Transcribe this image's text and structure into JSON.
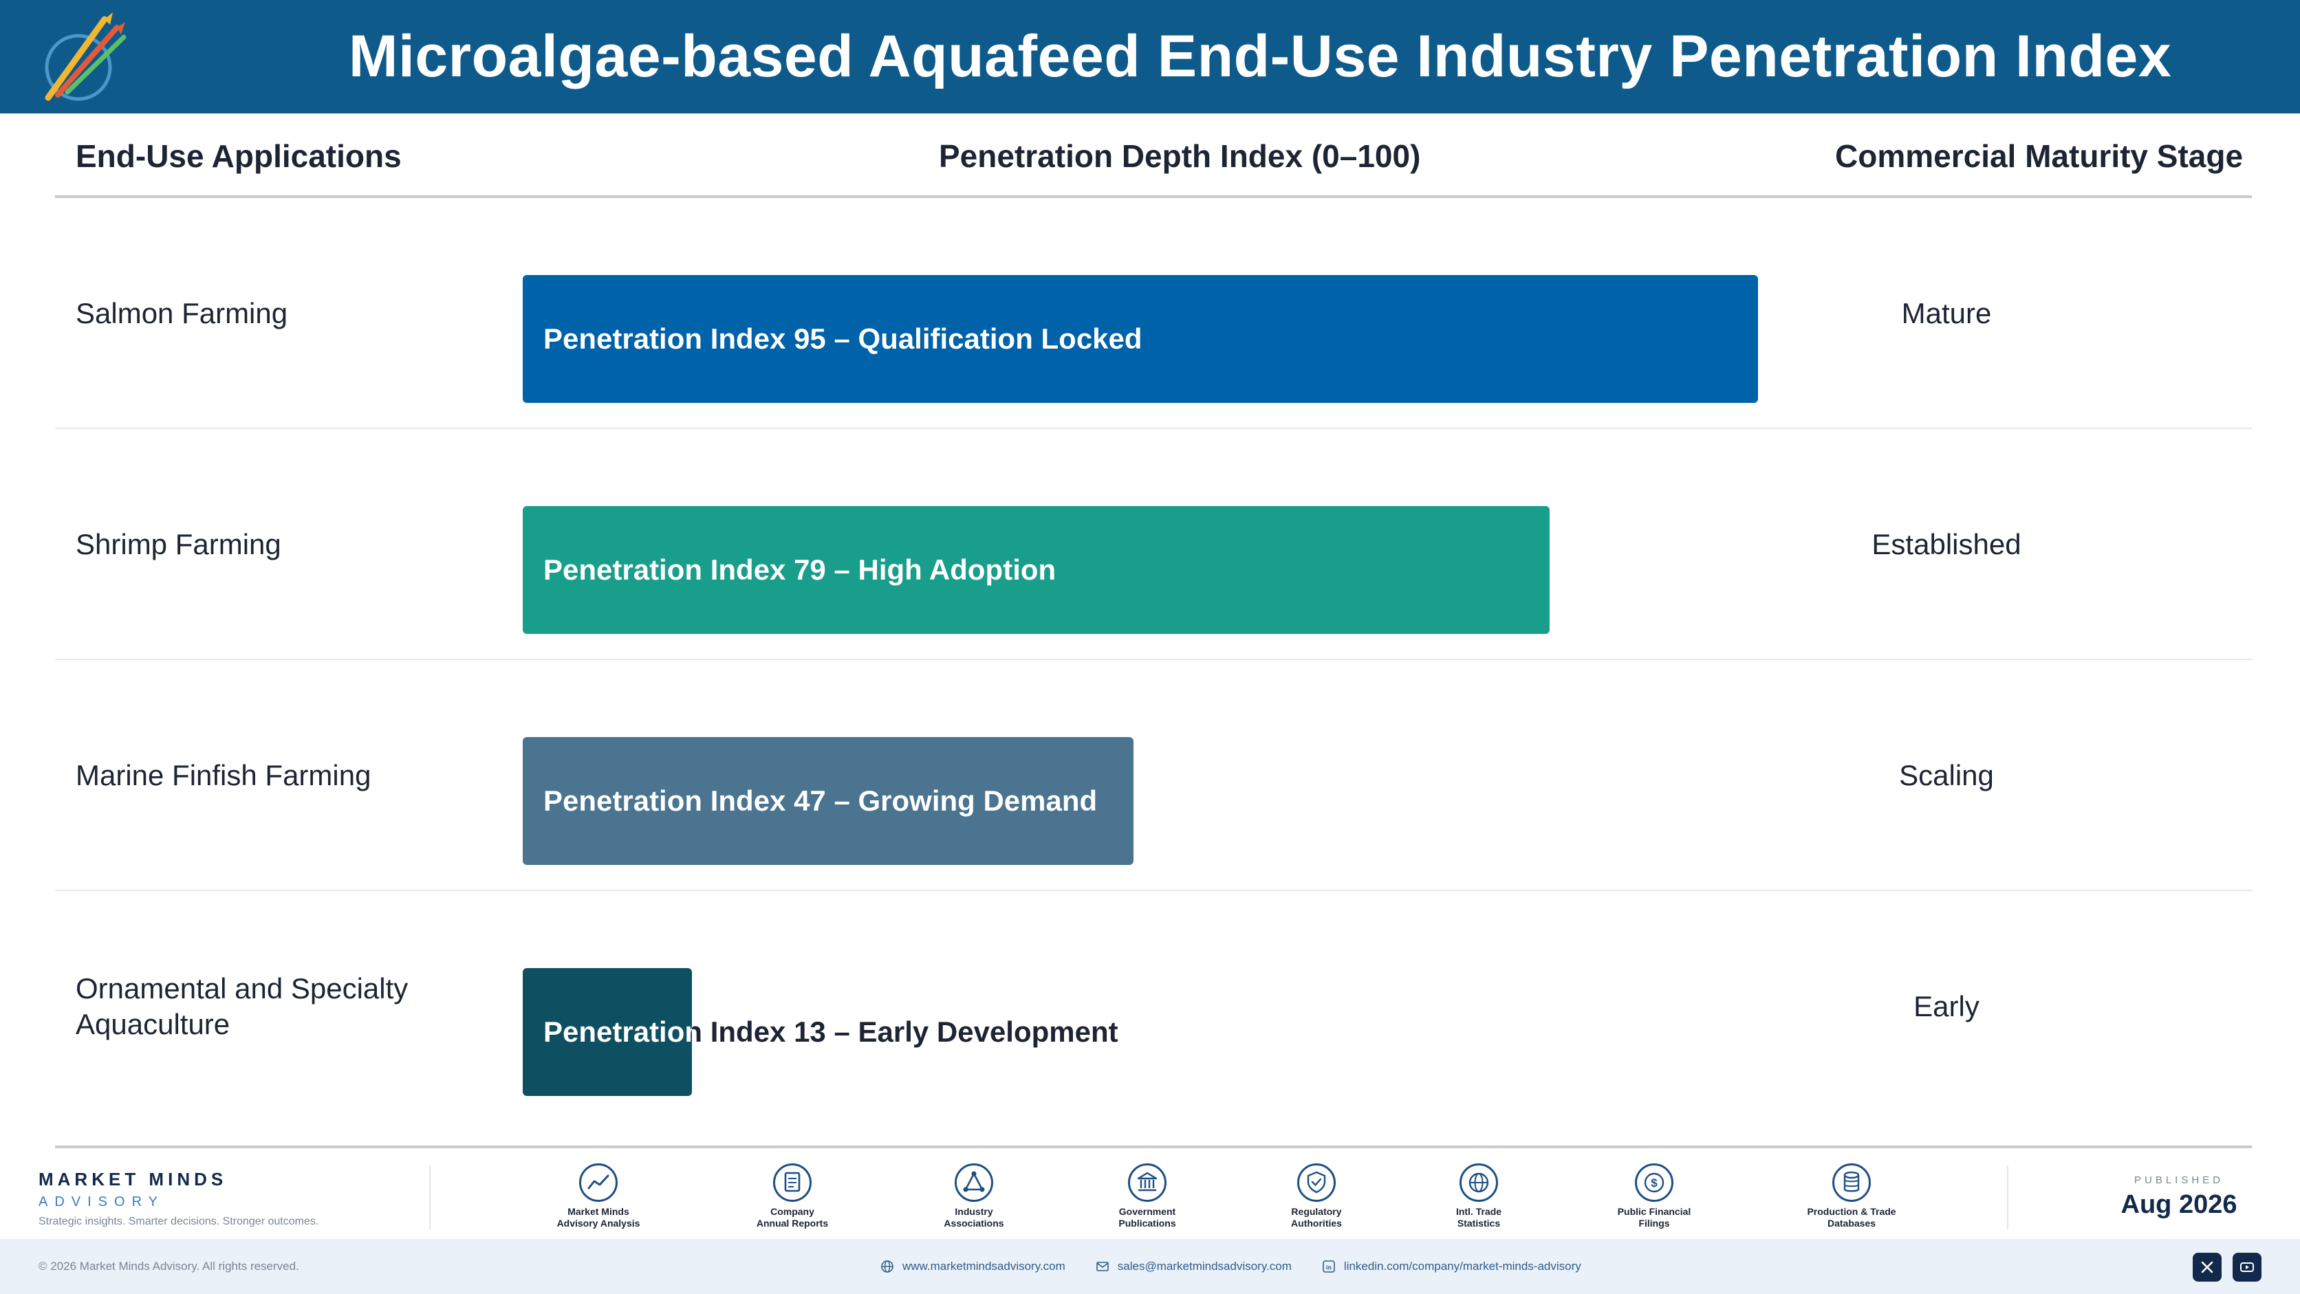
{
  "header": {
    "title": "Microalgae-based Aquafeed End-Use Industry Penetration Index",
    "logo_icon": "market-minds-logo"
  },
  "columns": {
    "applications": "End-Use Applications",
    "index": "Penetration Depth Index (0–100)",
    "stage": "Commercial Maturity Stage"
  },
  "chart_data": {
    "type": "bar",
    "orientation": "horizontal",
    "xlim": [
      0,
      100
    ],
    "categories": [
      "Salmon Farming",
      "Shrimp Farming",
      "Marine Finfish Farming",
      "Ornamental and Specialty Aquaculture"
    ],
    "values": [
      95,
      79,
      47,
      13
    ],
    "bar_labels": [
      "Penetration Index 95 – Qualification Locked",
      "Penetration Index 79 – High Adoption",
      "Penetration Index 47 – Growing Demand",
      "Penetration Index 13 – Early Development"
    ],
    "stages": [
      "Mature",
      "Established",
      "Scaling",
      "Early"
    ],
    "colors": [
      "#0062a8",
      "#1a9e8c",
      "#4a7490",
      "#0f4f62"
    ]
  },
  "footer": {
    "brand_name": "MARKET MINDS",
    "brand_sub": "ADVISORY",
    "brand_tagline": "Strategic insights. Smarter decisions. Stronger outcomes.",
    "sources": [
      {
        "label": "Market Minds\nAdvisory Analysis",
        "icon": "chart-line-icon"
      },
      {
        "label": "Company\nAnnual Reports",
        "icon": "document-icon"
      },
      {
        "label": "Industry\nAssociations",
        "icon": "network-icon"
      },
      {
        "label": "Government\nPublications",
        "icon": "government-building-icon"
      },
      {
        "label": "Regulatory\nAuthorities",
        "icon": "shield-check-icon"
      },
      {
        "label": "Intl. Trade\nStatistics",
        "icon": "globe-icon"
      },
      {
        "label": "Public Financial\nFilings",
        "icon": "dollar-coin-icon"
      },
      {
        "label": "Production & Trade\nDatabases",
        "icon": "database-icon"
      }
    ],
    "published_label": "PUBLISHED",
    "published_date": "Aug 2026",
    "copyright": "© 2026 Market Minds Advisory. All rights reserved.",
    "website": "www.marketmindsadvisory.com",
    "email": "sales@marketmindsadvisory.com",
    "linkedin": "linkedin.com/company/market-minds-advisory"
  }
}
